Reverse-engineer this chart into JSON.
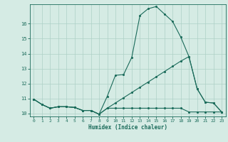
{
  "xlabel": "Humidex (Indice chaleur)",
  "ylabel": "",
  "bg_color": "#d5ebe4",
  "grid_color": "#aed0c6",
  "line_color": "#1a6b5a",
  "xlim": [
    -0.5,
    23.5
  ],
  "ylim": [
    9.8,
    17.3
  ],
  "xticks": [
    0,
    1,
    2,
    3,
    4,
    5,
    6,
    7,
    8,
    9,
    10,
    11,
    12,
    13,
    14,
    15,
    16,
    17,
    18,
    19,
    20,
    21,
    22,
    23
  ],
  "yticks": [
    10,
    11,
    12,
    13,
    14,
    15,
    16
  ],
  "line1_x": [
    0,
    1,
    2,
    3,
    4,
    5,
    6,
    7,
    8,
    9,
    10,
    11,
    12,
    13,
    14,
    15,
    16,
    17,
    18,
    19,
    20,
    21,
    22,
    23
  ],
  "line1_y": [
    10.95,
    10.6,
    10.35,
    10.45,
    10.45,
    10.4,
    10.2,
    10.2,
    9.95,
    10.35,
    10.35,
    10.35,
    10.35,
    10.35,
    10.35,
    10.35,
    10.35,
    10.35,
    10.35,
    10.1,
    10.1,
    10.1,
    10.1,
    10.1
  ],
  "line2_x": [
    0,
    1,
    2,
    3,
    4,
    5,
    6,
    7,
    8,
    9,
    10,
    11,
    12,
    13,
    14,
    15,
    16,
    17,
    18,
    19,
    20,
    21,
    22,
    23
  ],
  "line2_y": [
    10.95,
    10.6,
    10.35,
    10.45,
    10.45,
    10.4,
    10.2,
    10.2,
    9.95,
    11.15,
    12.55,
    12.6,
    13.75,
    16.55,
    17.0,
    17.15,
    16.65,
    16.15,
    15.1,
    13.8,
    11.65,
    10.75,
    10.7,
    10.1
  ],
  "line3_x": [
    0,
    1,
    2,
    3,
    4,
    5,
    6,
    7,
    8,
    9,
    10,
    11,
    12,
    13,
    14,
    15,
    16,
    17,
    18,
    19,
    20,
    21,
    22,
    23
  ],
  "line3_y": [
    10.95,
    10.6,
    10.35,
    10.45,
    10.45,
    10.4,
    10.2,
    10.2,
    9.95,
    10.35,
    10.7,
    11.05,
    11.4,
    11.75,
    12.1,
    12.45,
    12.8,
    13.15,
    13.5,
    13.8,
    11.65,
    10.75,
    10.7,
    10.1
  ]
}
